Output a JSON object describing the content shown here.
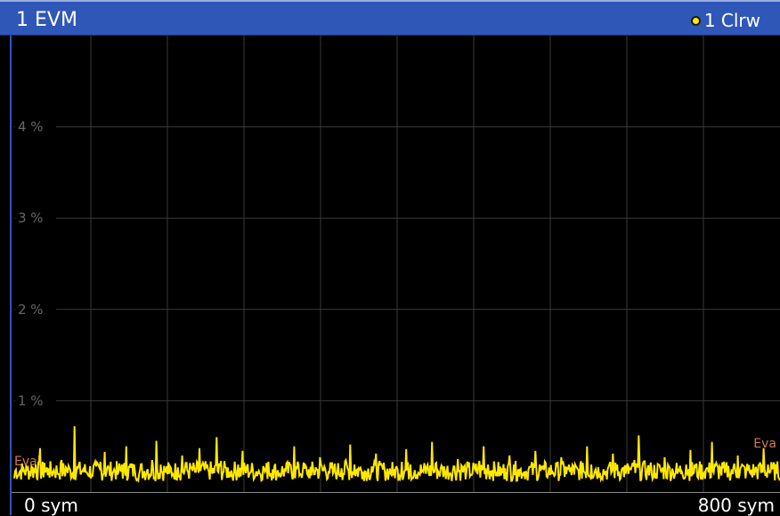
{
  "window": {
    "title": "1 EVM",
    "trace_label": "1 Clrw",
    "trace_color": "#ffe800",
    "accent": "#2f57b8"
  },
  "chart_data": {
    "type": "line",
    "title": "1 EVM",
    "xlabel": "",
    "ylabel": "",
    "x_start_label": "0 sym",
    "x_stop_label": "800 sym",
    "xlim": [
      0,
      800
    ],
    "ylim": [
      0,
      5
    ],
    "y_ticks": [
      1,
      2,
      3,
      4
    ],
    "y_tick_labels": [
      "1 %",
      "2 %",
      "3 %",
      "4 %"
    ],
    "grid": true,
    "markers": [
      {
        "label": "Eval",
        "side": "left"
      },
      {
        "label": "Eva",
        "side": "right"
      }
    ],
    "series": [
      {
        "color": "#ffe800",
        "values": [
          0.15,
          0.18,
          0.22,
          0.25,
          0.28,
          0.3,
          0.48,
          0.32,
          0.26,
          0.22,
          0.2,
          0.35,
          0.27,
          0.24,
          0.72,
          0.3,
          0.25,
          0.2,
          0.18,
          0.28,
          0.33,
          0.44,
          0.26,
          0.22,
          0.19,
          0.3,
          0.5,
          0.31,
          0.24,
          0.2,
          0.18,
          0.25,
          0.35,
          0.56,
          0.3,
          0.22,
          0.2,
          0.18,
          0.27,
          0.4,
          0.32,
          0.26,
          0.22,
          0.48,
          0.3,
          0.25,
          0.2,
          0.6,
          0.34,
          0.27,
          0.22,
          0.2,
          0.3,
          0.45,
          0.28,
          0.22,
          0.18,
          0.2,
          0.26,
          0.33,
          0.25,
          0.2,
          0.18,
          0.22,
          0.3,
          0.5,
          0.3,
          0.24,
          0.2,
          0.18,
          0.27,
          0.38,
          0.28,
          0.23,
          0.2,
          0.2,
          0.26,
          0.35,
          0.52,
          0.3,
          0.26,
          0.22,
          0.19,
          0.28,
          0.42,
          0.3,
          0.24,
          0.2,
          0.18,
          0.25,
          0.33,
          0.47,
          0.3,
          0.24,
          0.2,
          0.22,
          0.3,
          0.55,
          0.32,
          0.26,
          0.22,
          0.2,
          0.28,
          0.36,
          0.28,
          0.22,
          0.19,
          0.25,
          0.34,
          0.5,
          0.3,
          0.24,
          0.2,
          0.18,
          0.26,
          0.4,
          0.3,
          0.25,
          0.21,
          0.2,
          0.28,
          0.45,
          0.3,
          0.24,
          0.2,
          0.22,
          0.3,
          0.38,
          0.28,
          0.22,
          0.19,
          0.24,
          0.32,
          0.5,
          0.3,
          0.25,
          0.21,
          0.2,
          0.28,
          0.42,
          0.3,
          0.24,
          0.2,
          0.25,
          0.35,
          0.62,
          0.32,
          0.25,
          0.2,
          0.18,
          0.26,
          0.38,
          0.28,
          0.22,
          0.2,
          0.22,
          0.3,
          0.46,
          0.3,
          0.24,
          0.2,
          0.26,
          0.55,
          0.32,
          0.26,
          0.21,
          0.2,
          0.28,
          0.4,
          0.3,
          0.24,
          0.2,
          0.22,
          0.3,
          0.48,
          0.3,
          0.25,
          0.2
        ]
      }
    ]
  }
}
